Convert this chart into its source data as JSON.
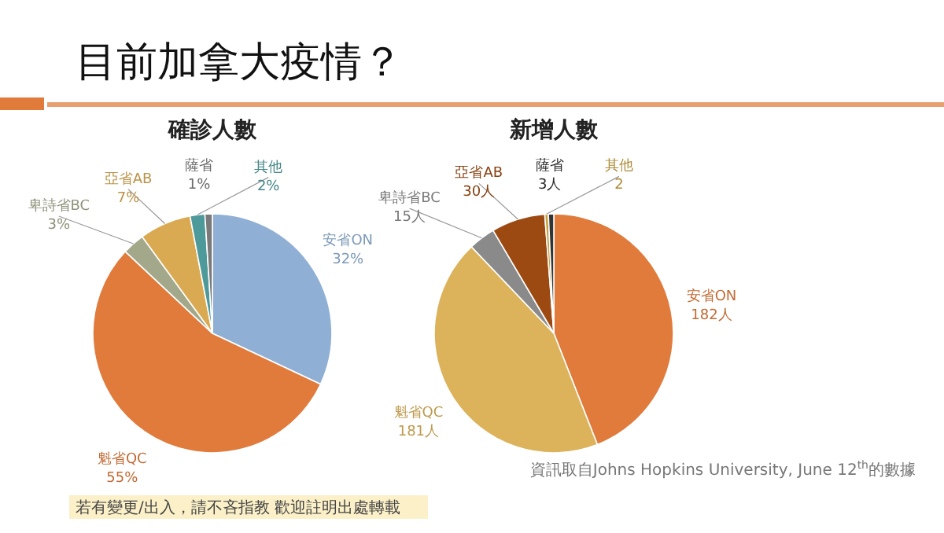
{
  "chart_data": [
    {
      "type": "pie",
      "title": "確診人數",
      "categories": [
        "安省ON",
        "魁省QC",
        "卑詩省BC",
        "亞省AB",
        "其他",
        "薩省"
      ],
      "values": [
        32,
        55,
        3,
        7,
        2,
        1
      ],
      "colors": [
        "#8fb0d4",
        "#e07b3c",
        "#a3a88a",
        "#d9aa52",
        "#4e9a9a",
        "#7a7a7a"
      ],
      "value_labels": [
        "32%",
        "55%",
        "3%",
        "7%",
        "2%",
        "1%"
      ],
      "annotations": [
        "目前加拿大疫情？",
        "若有變更/出入，請不吝指教 歡迎註明出處轉載"
      ]
    },
    {
      "type": "pie",
      "title": "新增人數",
      "categories": [
        "安省ON",
        "魁省QC",
        "卑詩省BC",
        "亞省AB",
        "其他",
        "薩省"
      ],
      "values": [
        182,
        181,
        15,
        30,
        2,
        3
      ],
      "colors": [
        "#e07b3c",
        "#dcb25a",
        "#8a8a8a",
        "#9c4a12",
        "#c8a040",
        "#333333"
      ],
      "value_labels": [
        "182人",
        "181人",
        "15人",
        "30人",
        "2",
        "3人"
      ],
      "annotations": [
        "資訊取自Johns Hopkins University, June 12$^{th}$的數據"
      ]
    }
  ]
}
